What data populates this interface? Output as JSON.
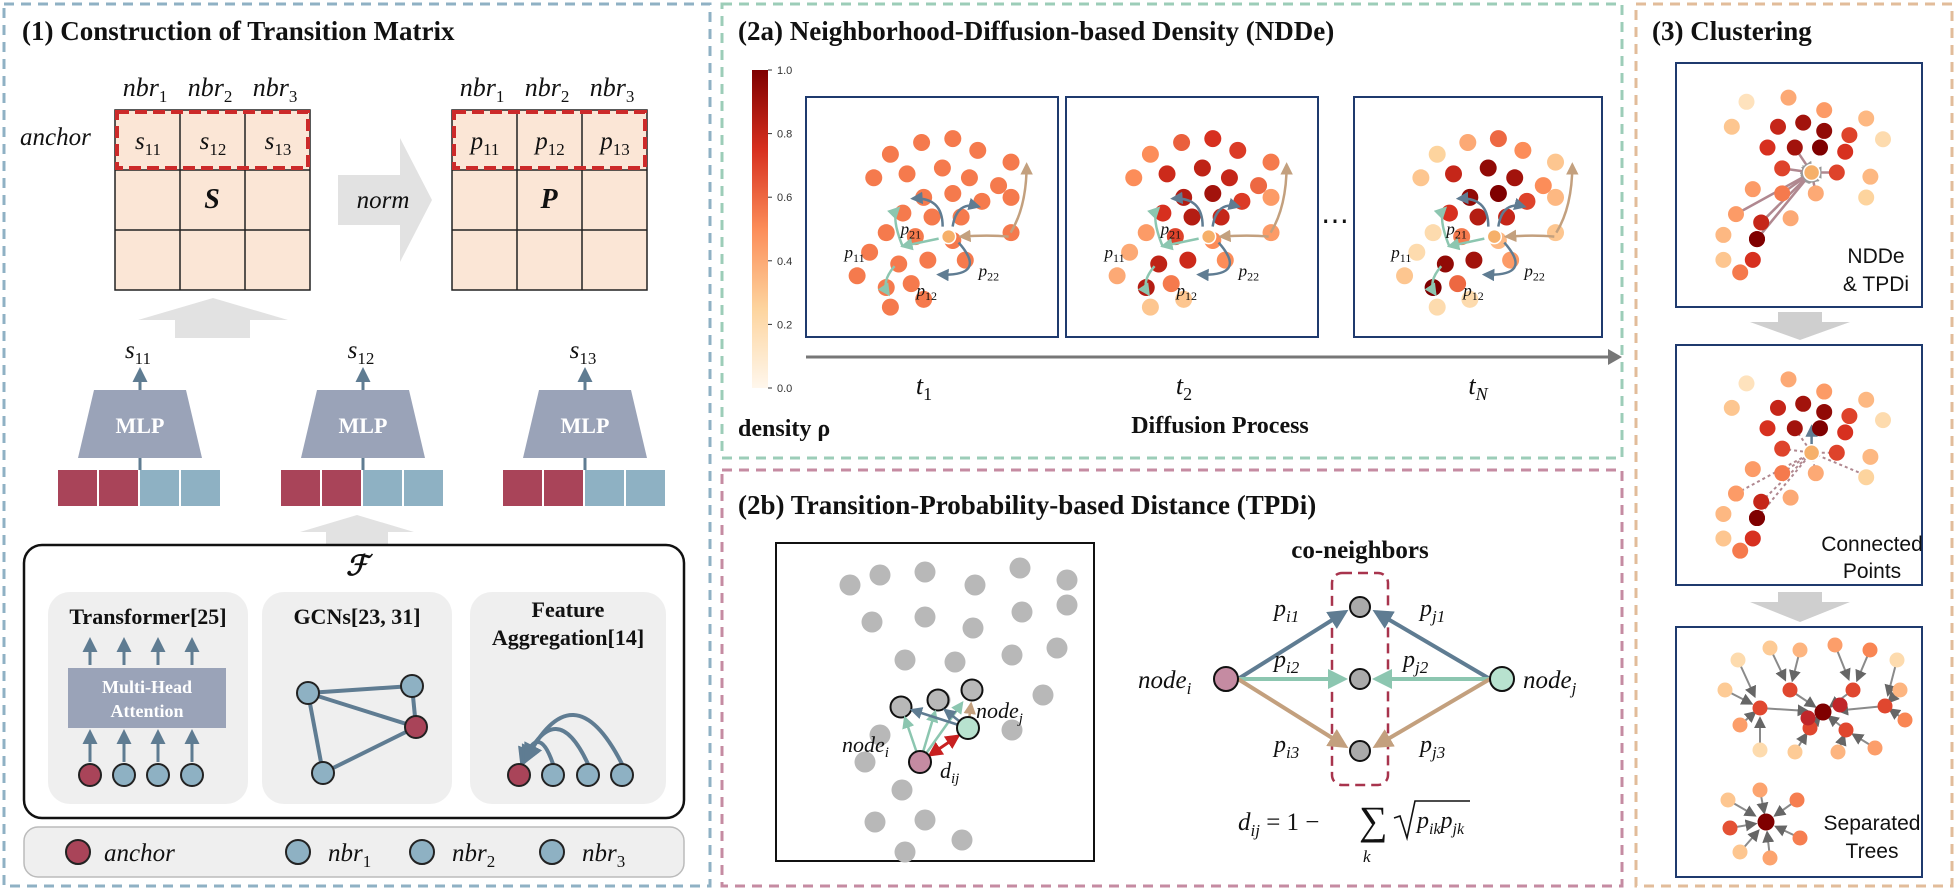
{
  "colors": {
    "panel1_border": "#8fb1c4",
    "panel2a_border": "#9ccdb8",
    "panel2b_border": "#c58ba2",
    "panel3_border": "#e2bc9a",
    "matrix_fill": "#fbe6d6",
    "matrix_highlight": "#cc2a2a",
    "mlp_fill": "#9aa3b8",
    "embed_red": "#a94459",
    "embed_blue": "#8eb1c3",
    "anchor_node": "#a94459",
    "nbr_node": "#8eb1c3",
    "arrow_teal": "#8cc6b0",
    "arrow_slate": "#5f7c92",
    "arrow_tan": "#c3a07e",
    "plot_frame": "#1f3a6e"
  },
  "panel1": {
    "title": "(1) Construction of Transition Matrix",
    "col_headers_S": [
      "nbr1",
      "nbr2",
      "nbr3"
    ],
    "row_label": "anchor",
    "S_cells": [
      "s11",
      "s12",
      "s13"
    ],
    "S_symbol": "S",
    "norm_label": "norm",
    "P_cells": [
      "p11",
      "p12",
      "p13"
    ],
    "P_symbol": "P",
    "mlp_label": "MLP",
    "mlp_outputs": [
      "s11",
      "s12",
      "s13"
    ],
    "feature_symbol": "ℱ",
    "modules": [
      {
        "title": "Transformer[25]",
        "inner": [
          "Multi-Head",
          "Attention"
        ]
      },
      {
        "title": "GCNs[23, 31]"
      },
      {
        "title": "Feature",
        "title2": "Aggregation[14]"
      }
    ],
    "legend": {
      "anchor": "anchor",
      "nbrs": [
        "nbr1",
        "nbr2",
        "nbr3"
      ]
    }
  },
  "panel2a": {
    "title": "(2a) Neighborhood-Diffusion-based Density (NDDe)",
    "colorbar_ticks": [
      "1.0",
      "0.8",
      "0.6",
      "0.4",
      "0.2",
      "0.0"
    ],
    "density_label": "density ρ",
    "time_labels": [
      "t1",
      "t2",
      "tN"
    ],
    "ellipsis": "⋯",
    "axis_label": "Diffusion Process",
    "arrow_labels": [
      "p21",
      "p11",
      "p12",
      "p22"
    ]
  },
  "panel2b": {
    "title": "(2b) Transition-Probability-based Distance (TPDi)",
    "node_i": "node",
    "node_i_sub": "i",
    "node_j": "node",
    "node_j_sub": "j",
    "dij": "d",
    "dij_sub": "ij",
    "co_neighbors": "co-neighbors",
    "edge_labels_i": [
      "pi1",
      "pi2",
      "pi3"
    ],
    "edge_labels_j": [
      "pj1",
      "pj2",
      "pj3"
    ],
    "formula": "d_ij = 1 − ∑_k √(p_ik p_jk)"
  },
  "panel3": {
    "title": "(3) Clustering",
    "stage1": [
      "NDDe",
      "& TPDi"
    ],
    "stage2": [
      "Connected",
      "Points"
    ],
    "stage3": [
      "Separated",
      "Trees"
    ]
  }
}
